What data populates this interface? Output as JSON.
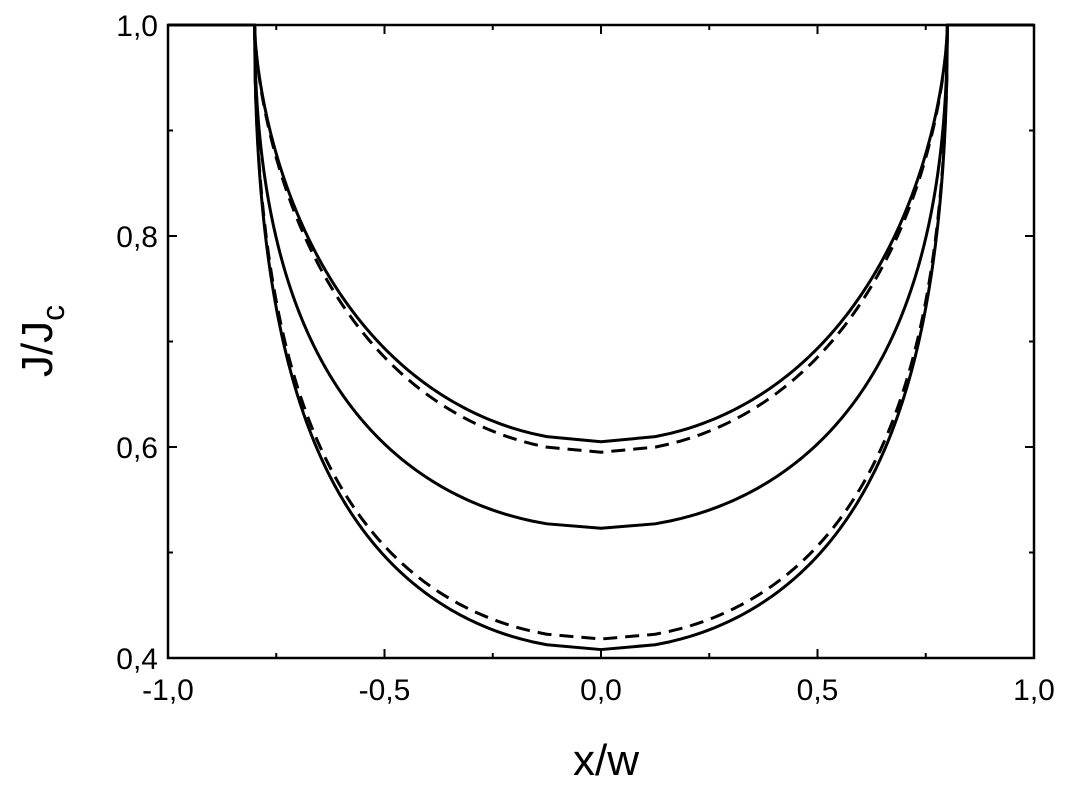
{
  "chart_data": {
    "type": "line",
    "xlabel": "x/w",
    "ylabel_main": "J/J",
    "ylabel_sub": "c",
    "xlim": [
      -1.0,
      1.0
    ],
    "ylim": [
      0.4,
      1.0
    ],
    "x_ticks": [
      {
        "value": -1.0,
        "label": "-1,0"
      },
      {
        "value": -0.5,
        "label": "-0,5"
      },
      {
        "value": 0.0,
        "label": "0,0"
      },
      {
        "value": 0.5,
        "label": "0,5"
      },
      {
        "value": 1.0,
        "label": "1,0"
      }
    ],
    "y_ticks": [
      {
        "value": 0.4,
        "label": "0,4"
      },
      {
        "value": 0.6,
        "label": "0,6"
      },
      {
        "value": 0.8,
        "label": "0,8"
      },
      {
        "value": 1.0,
        "label": "1,0"
      }
    ],
    "x_minor_ticks": [
      -0.75,
      -0.25,
      0.25,
      0.75
    ],
    "y_minor_ticks": [
      0.5,
      0.7,
      0.9
    ],
    "grid": false,
    "edge": 0.8,
    "series": [
      {
        "style": "solid",
        "center_value": 0.605,
        "shape": 0.64
      },
      {
        "style": "dashed",
        "center_value": 0.595,
        "shape": 0.64
      },
      {
        "style": "solid",
        "center_value": 0.523,
        "shape": 0.5
      },
      {
        "style": "solid",
        "center_value": 0.408,
        "shape": 0.5
      },
      {
        "style": "dashed",
        "center_value": 0.418,
        "shape": 0.5
      }
    ]
  }
}
